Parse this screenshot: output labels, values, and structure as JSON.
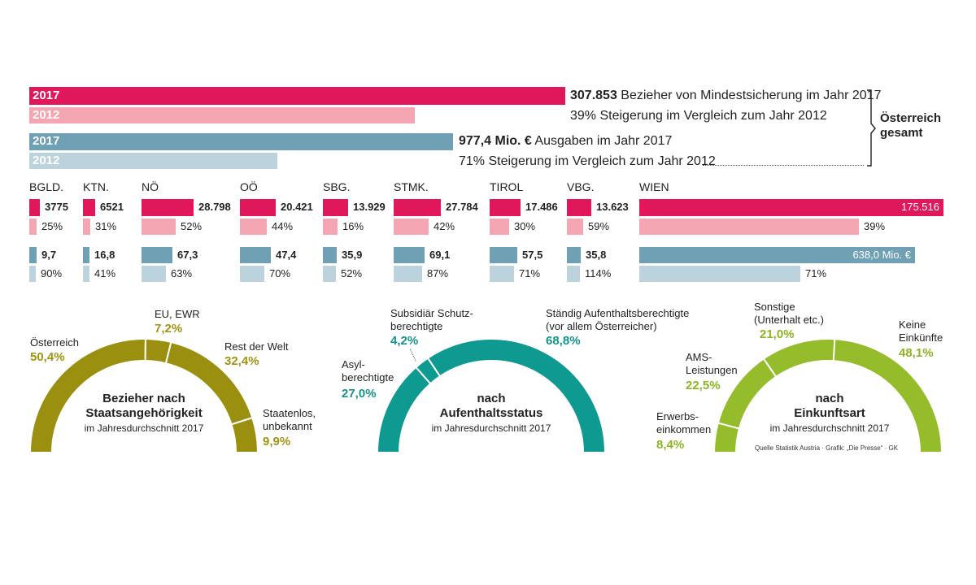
{
  "colors": {
    "pink_dark": "#E0175A",
    "pink_light": "#F4A6B2",
    "blue_dark": "#6FA0B4",
    "blue_light": "#BCD3DE",
    "olive": "#9A8F0E",
    "olive_text": "#A09413",
    "teal": "#0E9A91",
    "teal_text": "#12948B",
    "lime": "#95BC2A",
    "lime_text": "#8DB521"
  },
  "totals": {
    "bar_year_2017": "2017",
    "bar_year_2012": "2012",
    "recipients_number": "307.853",
    "recipients_text": " Bezieher von Mindestsicherung im Jahr 2017",
    "recipients_increase": "39% Steigerung im Vergleich zum Jahr 2012",
    "spending_number": "977,4 Mio. €",
    "spending_text": " Ausgaben im Jahr 2017",
    "spending_increase": "71% Steigerung im Vergleich zum Jahr 2012",
    "bracket_label_1": "Österreich",
    "bracket_label_2": "gesamt"
  },
  "regions": [
    {
      "name": "BGLD.",
      "recipients": "3775",
      "recipients_increase": "25%",
      "spending": "9,7",
      "spending_increase": "90%"
    },
    {
      "name": "KTN.",
      "recipients": "6521",
      "recipients_increase": "31%",
      "spending": "16,8",
      "spending_increase": "41%"
    },
    {
      "name": "NÖ",
      "recipients": "28.798",
      "recipients_increase": "52%",
      "spending": "67,3",
      "spending_increase": "63%"
    },
    {
      "name": "OÖ",
      "recipients": "20.421",
      "recipients_increase": "44%",
      "spending": "47,4",
      "spending_increase": "70%"
    },
    {
      "name": "SBG.",
      "recipients": "13.929",
      "recipients_increase": "16%",
      "spending": "35,9",
      "spending_increase": "52%"
    },
    {
      "name": "STMK.",
      "recipients": "27.784",
      "recipients_increase": "42%",
      "spending": "69,1",
      "spending_increase": "87%"
    },
    {
      "name": "TIROL",
      "recipients": "17.486",
      "recipients_increase": "30%",
      "spending": "57,5",
      "spending_increase": "71%"
    },
    {
      "name": "VBG.",
      "recipients": "13.623",
      "recipients_increase": "59%",
      "spending": "35,8",
      "spending_increase": "114%"
    },
    {
      "name": "WIEN",
      "recipients": "175.516",
      "recipients_increase": "39%",
      "spending": "638,0 Mio. €",
      "spending_increase": "71%"
    }
  ],
  "donuts": {
    "nationality": {
      "title_1": "Bezieher nach",
      "title_2": "Staatsangehörigkeit",
      "subtitle": "im Jahresdurchschnitt 2017",
      "segments": [
        {
          "label_1": "Österreich",
          "label_2": "",
          "pct": "50,4%",
          "value": 50.4
        },
        {
          "label_1": "EU, EWR",
          "label_2": "",
          "pct": "7,2%",
          "value": 7.2
        },
        {
          "label_1": "Rest der Welt",
          "label_2": "",
          "pct": "32,4%",
          "value": 32.4
        },
        {
          "label_1": "Staatenlos,",
          "label_2": "unbekannt",
          "pct": "9,9%",
          "value": 9.9
        }
      ]
    },
    "status": {
      "title_1": "nach",
      "title_2": "Aufenthaltsstatus",
      "subtitle": "im Jahresdurchschnitt 2017",
      "segments": [
        {
          "label_1": "Asyl-",
          "label_2": "berechtigte",
          "pct": "27,0%",
          "value": 27.0
        },
        {
          "label_1": "Subsidiär Schutz-",
          "label_2": "berechtigte",
          "pct": "4,2%",
          "value": 4.2
        },
        {
          "label_1": "Ständig Aufenthaltsberechtigte",
          "label_2": "(vor allem Österreicher)",
          "pct": "68,8%",
          "value": 68.8
        }
      ]
    },
    "income": {
      "title_1": "nach",
      "title_2": "Einkunftsart",
      "subtitle": "im Jahresdurchschnitt 2017",
      "source": "Quelle Statistik Austria · Grafik: „Die Presse“ · GK",
      "segments": [
        {
          "label_1": "Erwerbs-",
          "label_2": "einkommen",
          "pct": "8,4%",
          "value": 8.4
        },
        {
          "label_1": "AMS-",
          "label_2": "Leistungen",
          "pct": "22,5%",
          "value": 22.5
        },
        {
          "label_1": "Sonstige",
          "label_2": "(Unterhalt etc.)",
          "pct": "21,0%",
          "value": 21.0
        },
        {
          "label_1": "Keine",
          "label_2": "Einkünfte",
          "pct": "48,1%",
          "value": 48.1
        }
      ]
    }
  },
  "chart_data": [
    {
      "type": "bar",
      "categories": [
        "2017",
        "2012"
      ],
      "series": [
        {
          "name": "Bezieher von Mindestsicherung",
          "values": [
            307853,
            221477
          ]
        }
      ]
    },
    {
      "type": "bar",
      "categories": [
        "2017",
        "2012"
      ],
      "series": [
        {
          "name": "Ausgaben",
          "values": [
            977.4,
            571.6
          ]
        }
      ]
    },
    {
      "type": "bar",
      "categories": [
        "BGLD.",
        "KTN.",
        "NÖ",
        "OÖ",
        "SBG.",
        "STMK.",
        "TIROL",
        "VBG.",
        "WIEN"
      ],
      "series": [
        {
          "name": "Bezieher 2017",
          "values": [
            3775,
            6521,
            28798,
            20421,
            13929,
            27784,
            17486,
            13623,
            175516
          ]
        },
        {
          "name": "Steigerung Bezieher (%)",
          "values": [
            25,
            31,
            52,
            44,
            16,
            42,
            30,
            59,
            39
          ]
        },
        {
          "name": "Ausgaben 2017",
          "values": [
            9.7,
            16.8,
            67.3,
            47.4,
            35.9,
            69.1,
            57.5,
            35.8,
            638.0
          ]
        },
        {
          "name": "Steigerung Ausgaben (%)",
          "values": [
            90,
            41,
            63,
            70,
            52,
            87,
            71,
            114,
            71
          ]
        }
      ]
    },
    {
      "type": "pie",
      "title": "Bezieher nach Staatsangehörigkeit",
      "categories": [
        "Österreich",
        "EU, EWR",
        "Rest der Welt",
        "Staatenlos, unbekannt"
      ],
      "values": [
        50.4,
        7.2,
        32.4,
        9.9
      ]
    },
    {
      "type": "pie",
      "title": "nach Aufenthaltsstatus",
      "categories": [
        "Asylberechtigte",
        "Subsidiär Schutzberechtigte",
        "Ständig Aufenthaltsberechtigte"
      ],
      "values": [
        27.0,
        4.2,
        68.8
      ]
    },
    {
      "type": "pie",
      "title": "nach Einkunftsart",
      "categories": [
        "Erwerbseinkommen",
        "AMS-Leistungen",
        "Sonstige",
        "Keine Einkünfte"
      ],
      "values": [
        8.4,
        22.5,
        21.0,
        48.1
      ]
    }
  ]
}
